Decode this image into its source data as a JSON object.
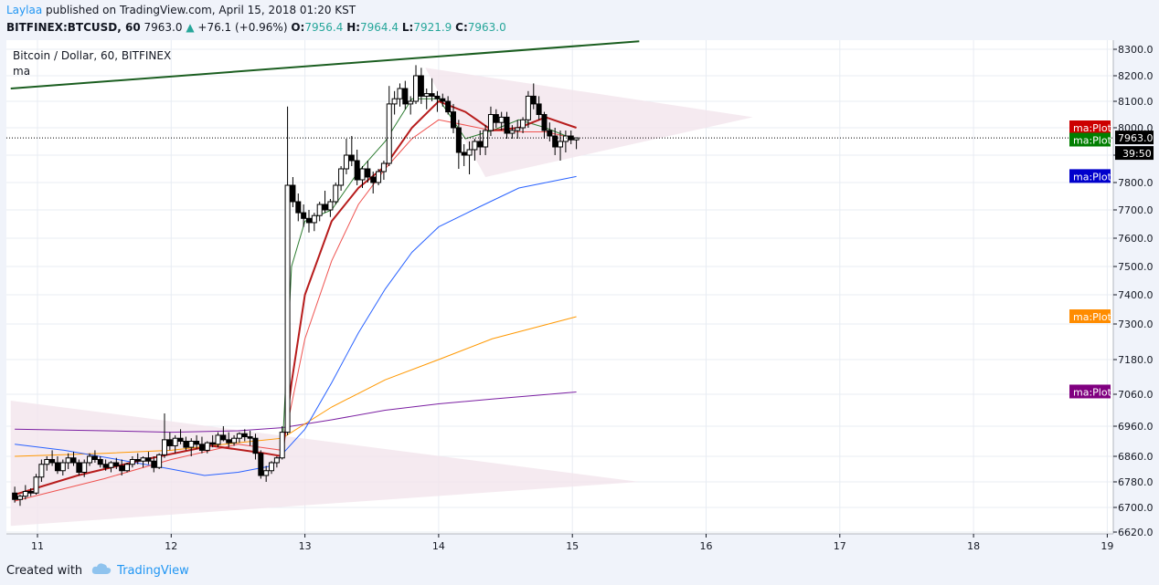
{
  "header": {
    "author": "Laylaa",
    "published_text": " published on TradingView.com, April 15, 2018 01:20 KST",
    "symbol": "BITFINEX:BTCUSD, 60",
    "last": "7963.0",
    "change_arrow": "▲",
    "change": "+76.1 (+0.96%)",
    "open_label": "O:",
    "open": "7956.4",
    "high_label": "H:",
    "high": "7964.4",
    "low_label": "L:",
    "low": "7921.9",
    "close_label": "C:",
    "close": "7963.0"
  },
  "legend": {
    "title": "Bitcoin / Dollar, 60, BITFINEX",
    "indicator": "ma"
  },
  "footer": {
    "created_with": "Created with",
    "brand": "TradingView"
  },
  "colors": {
    "up": "#26a69a",
    "candle": "#000000",
    "ma_red": "#b71c1c",
    "ma_salmon": "#ef5350",
    "ma_blue": "#2962ff",
    "ma_orange": "#ff9800",
    "ma_purple": "#7b1fa2",
    "ma_green": "#2e7d32",
    "triangle_fill": "#f3e5ec",
    "trendline": "#1b5e20",
    "last_label_bg": "#000000",
    "ma_red_label": "#cc0000",
    "ma_green_label": "#007f00",
    "ma_blue_label": "#0000cc",
    "ma_orange_label": "#ff8c00",
    "ma_purple_label": "#800080"
  },
  "chart_data": {
    "type": "candlestick",
    "title": "Bitcoin / Dollar, 60, BITFINEX",
    "x_ticks": [
      "11",
      "12",
      "13",
      "14",
      "15",
      "16",
      "17",
      "18",
      "19"
    ],
    "y_ticks": [
      6620,
      6700,
      6780,
      6860,
      6960,
      7060,
      7180,
      7300,
      7400,
      7500,
      7600,
      7700,
      7800,
      7900,
      8000,
      8100,
      8200,
      8300
    ],
    "y_tick_labels": [
      "6620.0",
      "6700.0",
      "6780.0",
      "6860.0",
      "6960.0",
      "7060.0",
      "7180.0",
      "7300.0",
      "7400.0",
      "7500.0",
      "7600.0",
      "7700.0",
      "7800.0",
      "7900.0",
      "8000.0",
      "8100.0",
      "8200.0",
      "8300.0"
    ],
    "ylim": [
      6600,
      8330
    ],
    "xlim_days": [
      10.8,
      19.0
    ],
    "last_price": 7963.0,
    "countdown": "39:50",
    "ma_labels": [
      {
        "text": "ma:Plot",
        "value": 8000,
        "color_key": "ma_red_label"
      },
      {
        "text": "ma:Plot",
        "value": 7955,
        "color_key": "ma_green_label"
      },
      {
        "text": "ma:Plot",
        "value": 7822,
        "color_key": "ma_blue_label"
      },
      {
        "text": "ma:Plot",
        "value": 7325,
        "color_key": "ma_orange_label"
      },
      {
        "text": "ma:Plot",
        "value": 7068,
        "color_key": "ma_purple_label"
      }
    ],
    "candles": [
      [
        10.83,
        6745,
        6765,
        6715,
        6725
      ],
      [
        10.87,
        6725,
        6740,
        6705,
        6735
      ],
      [
        10.91,
        6735,
        6770,
        6725,
        6750
      ],
      [
        10.95,
        6750,
        6760,
        6735,
        6745
      ],
      [
        10.99,
        6745,
        6805,
        6740,
        6795
      ],
      [
        11.03,
        6795,
        6850,
        6780,
        6835
      ],
      [
        11.07,
        6835,
        6860,
        6815,
        6850
      ],
      [
        11.11,
        6850,
        6880,
        6830,
        6840
      ],
      [
        11.15,
        6840,
        6860,
        6805,
        6815
      ],
      [
        11.19,
        6815,
        6850,
        6800,
        6840
      ],
      [
        11.23,
        6840,
        6870,
        6820,
        6855
      ],
      [
        11.27,
        6855,
        6875,
        6830,
        6840
      ],
      [
        11.31,
        6840,
        6850,
        6800,
        6810
      ],
      [
        11.35,
        6810,
        6850,
        6795,
        6840
      ],
      [
        11.39,
        6840,
        6870,
        6830,
        6860
      ],
      [
        11.43,
        6860,
        6880,
        6840,
        6850
      ],
      [
        11.47,
        6850,
        6860,
        6825,
        6835
      ],
      [
        11.51,
        6835,
        6850,
        6815,
        6825
      ],
      [
        11.55,
        6825,
        6845,
        6810,
        6840
      ],
      [
        11.59,
        6840,
        6855,
        6820,
        6830
      ],
      [
        11.63,
        6830,
        6850,
        6800,
        6815
      ],
      [
        11.67,
        6815,
        6840,
        6810,
        6835
      ],
      [
        11.71,
        6835,
        6860,
        6825,
        6850
      ],
      [
        11.75,
        6850,
        6870,
        6835,
        6845
      ],
      [
        11.79,
        6845,
        6860,
        6825,
        6855
      ],
      [
        11.83,
        6855,
        6875,
        6835,
        6845
      ],
      [
        11.87,
        6845,
        6860,
        6810,
        6825
      ],
      [
        11.91,
        6825,
        6870,
        6820,
        6865
      ],
      [
        11.95,
        6865,
        7000,
        6855,
        6915
      ],
      [
        11.99,
        6915,
        6940,
        6880,
        6895
      ],
      [
        12.03,
        6895,
        6930,
        6870,
        6920
      ],
      [
        12.07,
        6920,
        6950,
        6900,
        6910
      ],
      [
        12.11,
        6910,
        6925,
        6880,
        6890
      ],
      [
        12.15,
        6890,
        6920,
        6860,
        6910
      ],
      [
        12.19,
        6910,
        6930,
        6885,
        6900
      ],
      [
        12.23,
        6900,
        6925,
        6870,
        6880
      ],
      [
        12.27,
        6880,
        6910,
        6870,
        6905
      ],
      [
        12.31,
        6905,
        6930,
        6890,
        6900
      ],
      [
        12.35,
        6900,
        6940,
        6890,
        6930
      ],
      [
        12.39,
        6930,
        6960,
        6910,
        6915
      ],
      [
        12.43,
        6915,
        6940,
        6890,
        6905
      ],
      [
        12.47,
        6905,
        6930,
        6895,
        6920
      ],
      [
        12.51,
        6920,
        6940,
        6905,
        6935
      ],
      [
        12.55,
        6935,
        6950,
        6910,
        6925
      ],
      [
        12.59,
        6925,
        6945,
        6895,
        6920
      ],
      [
        12.63,
        6920,
        6935,
        6850,
        6870
      ],
      [
        12.67,
        6870,
        6880,
        6790,
        6800
      ],
      [
        12.71,
        6800,
        6830,
        6780,
        6815
      ],
      [
        12.75,
        6815,
        6845,
        6805,
        6840
      ],
      [
        12.79,
        6840,
        6860,
        6825,
        6855
      ],
      [
        12.83,
        6855,
        6960,
        6850,
        6940
      ],
      [
        12.87,
        6940,
        8080,
        6930,
        7790
      ],
      [
        12.91,
        7790,
        7820,
        7710,
        7730
      ],
      [
        12.95,
        7730,
        7760,
        7660,
        7690
      ],
      [
        12.99,
        7690,
        7720,
        7640,
        7670
      ],
      [
        13.03,
        7670,
        7700,
        7620,
        7655
      ],
      [
        13.07,
        7655,
        7690,
        7625,
        7680
      ],
      [
        13.11,
        7680,
        7730,
        7660,
        7720
      ],
      [
        13.15,
        7720,
        7770,
        7690,
        7700
      ],
      [
        13.19,
        7700,
        7740,
        7675,
        7730
      ],
      [
        13.23,
        7730,
        7800,
        7720,
        7790
      ],
      [
        13.27,
        7790,
        7860,
        7770,
        7850
      ],
      [
        13.31,
        7850,
        7960,
        7830,
        7900
      ],
      [
        13.35,
        7900,
        7970,
        7860,
        7880
      ],
      [
        13.39,
        7880,
        7920,
        7790,
        7810
      ],
      [
        13.43,
        7810,
        7860,
        7780,
        7850
      ],
      [
        13.47,
        7850,
        7880,
        7800,
        7820
      ],
      [
        13.51,
        7820,
        7840,
        7760,
        7800
      ],
      [
        13.55,
        7800,
        7850,
        7790,
        7840
      ],
      [
        13.59,
        7840,
        7880,
        7810,
        7870
      ],
      [
        13.63,
        7870,
        8160,
        7860,
        8090
      ],
      [
        13.67,
        8090,
        8140,
        8050,
        8110
      ],
      [
        13.71,
        8110,
        8170,
        8080,
        8150
      ],
      [
        13.75,
        8150,
        8180,
        8070,
        8090
      ],
      [
        13.79,
        8090,
        8120,
        8050,
        8100
      ],
      [
        13.83,
        8100,
        8240,
        8090,
        8200
      ],
      [
        13.87,
        8200,
        8230,
        8090,
        8120
      ],
      [
        13.91,
        8120,
        8150,
        8070,
        8130
      ],
      [
        13.95,
        8130,
        8190,
        8100,
        8120
      ],
      [
        13.99,
        8120,
        8140,
        8060,
        8110
      ],
      [
        14.03,
        8110,
        8130,
        8080,
        8100
      ],
      [
        14.07,
        8100,
        8120,
        8050,
        8060
      ],
      [
        14.11,
        8060,
        8090,
        7980,
        8000
      ],
      [
        14.15,
        8000,
        8030,
        7850,
        7910
      ],
      [
        14.19,
        7910,
        7940,
        7860,
        7900
      ],
      [
        14.23,
        7900,
        7950,
        7830,
        7920
      ],
      [
        14.27,
        7920,
        7960,
        7880,
        7950
      ],
      [
        14.31,
        7950,
        7990,
        7900,
        7930
      ],
      [
        14.35,
        7930,
        8010,
        7900,
        7990
      ],
      [
        14.39,
        7990,
        8080,
        7970,
        8050
      ],
      [
        14.43,
        8050,
        8070,
        8000,
        8020
      ],
      [
        14.47,
        8020,
        8060,
        7990,
        8040
      ],
      [
        14.51,
        8040,
        8060,
        7960,
        7980
      ],
      [
        14.55,
        7980,
        8010,
        7960,
        7990
      ],
      [
        14.59,
        7990,
        8030,
        7960,
        8000
      ],
      [
        14.63,
        8000,
        8040,
        7980,
        8030
      ],
      [
        14.67,
        8030,
        8140,
        8000,
        8120
      ],
      [
        14.71,
        8120,
        8170,
        8070,
        8090
      ],
      [
        14.75,
        8090,
        8120,
        8030,
        8050
      ],
      [
        14.79,
        8050,
        8060,
        7960,
        7990
      ],
      [
        14.83,
        7990,
        8020,
        7950,
        7970
      ],
      [
        14.87,
        7970,
        8000,
        7900,
        7930
      ],
      [
        14.91,
        7930,
        7990,
        7880,
        7950
      ],
      [
        14.95,
        7950,
        7990,
        7910,
        7970
      ],
      [
        14.99,
        7970,
        7990,
        7940,
        7956
      ],
      [
        15.03,
        7956,
        7964,
        7922,
        7963
      ]
    ],
    "ma_fast_red": [
      [
        10.83,
        6740
      ],
      [
        11.3,
        6800
      ],
      [
        11.8,
        6850
      ],
      [
        12.3,
        6895
      ],
      [
        12.7,
        6870
      ],
      [
        12.83,
        6860
      ],
      [
        12.9,
        7100
      ],
      [
        13.0,
        7400
      ],
      [
        13.2,
        7660
      ],
      [
        13.4,
        7780
      ],
      [
        13.6,
        7860
      ],
      [
        13.8,
        8000
      ],
      [
        14.0,
        8100
      ],
      [
        14.2,
        8060
      ],
      [
        14.4,
        7990
      ],
      [
        14.6,
        8000
      ],
      [
        14.8,
        8040
      ],
      [
        15.03,
        8000
      ]
    ],
    "ma_salmon": [
      [
        10.83,
        6720
      ],
      [
        11.5,
        6790
      ],
      [
        12.0,
        6850
      ],
      [
        12.5,
        6900
      ],
      [
        12.83,
        6880
      ],
      [
        13.0,
        7250
      ],
      [
        13.2,
        7520
      ],
      [
        13.4,
        7720
      ],
      [
        13.6,
        7850
      ],
      [
        13.8,
        7960
      ],
      [
        14.0,
        8030
      ],
      [
        14.2,
        8010
      ],
      [
        14.4,
        7990
      ],
      [
        14.6,
        7985
      ],
      [
        14.8,
        7985
      ],
      [
        15.03,
        7960
      ]
    ],
    "ma_blue": [
      [
        10.83,
        6900
      ],
      [
        11.2,
        6880
      ],
      [
        11.6,
        6850
      ],
      [
        12.0,
        6820
      ],
      [
        12.25,
        6800
      ],
      [
        12.5,
        6810
      ],
      [
        12.75,
        6830
      ],
      [
        13.0,
        6950
      ],
      [
        13.2,
        7100
      ],
      [
        13.4,
        7270
      ],
      [
        13.6,
        7420
      ],
      [
        13.8,
        7550
      ],
      [
        14.0,
        7640
      ],
      [
        14.3,
        7710
      ],
      [
        14.6,
        7780
      ],
      [
        15.03,
        7822
      ]
    ],
    "ma_orange": [
      [
        10.83,
        6860
      ],
      [
        11.5,
        6870
      ],
      [
        12.0,
        6880
      ],
      [
        12.5,
        6905
      ],
      [
        12.83,
        6920
      ],
      [
        13.2,
        7020
      ],
      [
        13.6,
        7110
      ],
      [
        14.0,
        7180
      ],
      [
        14.4,
        7250
      ],
      [
        15.03,
        7325
      ]
    ],
    "ma_purple": [
      [
        10.83,
        6950
      ],
      [
        11.5,
        6945
      ],
      [
        12.0,
        6940
      ],
      [
        12.5,
        6945
      ],
      [
        12.83,
        6955
      ],
      [
        13.2,
        6980
      ],
      [
        13.6,
        7010
      ],
      [
        14.0,
        7030
      ],
      [
        14.4,
        7045
      ],
      [
        15.03,
        7068
      ]
    ],
    "ma_green_short": [
      [
        12.83,
        6870
      ],
      [
        12.9,
        7500
      ],
      [
        13.0,
        7660
      ],
      [
        13.2,
        7700
      ],
      [
        13.4,
        7840
      ],
      [
        13.6,
        7950
      ],
      [
        13.8,
        8110
      ],
      [
        14.0,
        8110
      ],
      [
        14.2,
        7960
      ],
      [
        14.4,
        7990
      ],
      [
        14.6,
        8030
      ],
      [
        14.8,
        8000
      ],
      [
        15.03,
        7955
      ]
    ],
    "trendline_top": [
      [
        10.8,
        8150
      ],
      [
        15.5,
        8330
      ]
    ],
    "triangle_lower": [
      [
        10.8,
        7040
      ],
      [
        15.5,
        6780
      ],
      [
        10.8,
        6640
      ]
    ],
    "triangle_upper": [
      [
        13.9,
        8230
      ],
      [
        16.35,
        8040
      ],
      [
        14.35,
        7820
      ]
    ]
  }
}
